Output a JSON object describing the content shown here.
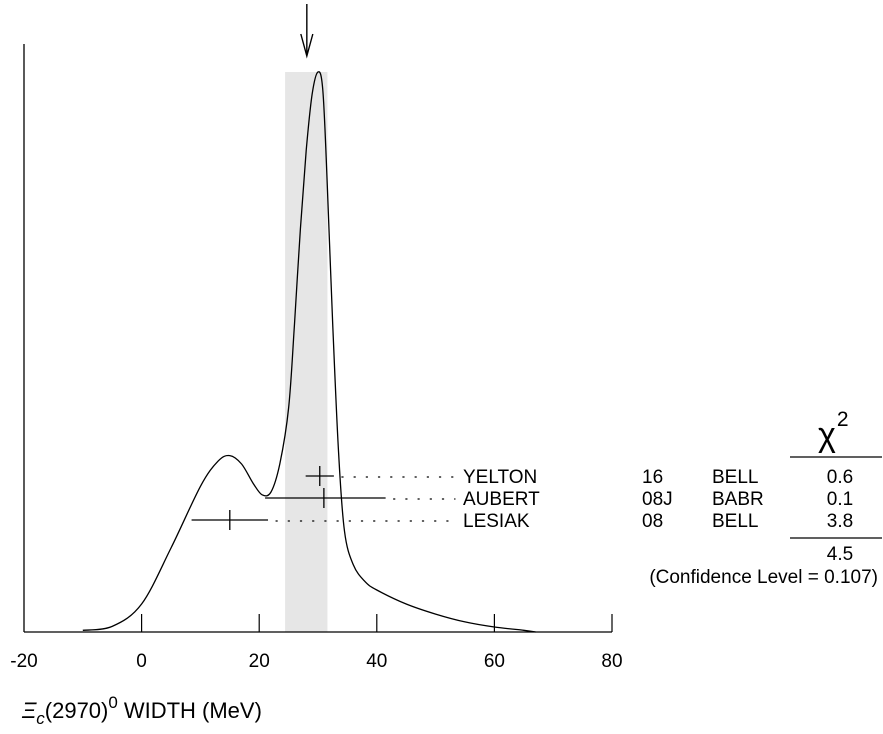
{
  "chart_data": {
    "type": "ideogram",
    "xlabel": {
      "symbol": "Ξ",
      "subscript": "c",
      "mass": "(2970)",
      "superscript": "0",
      "rest": "WIDTH (MeV)"
    },
    "xlim": [
      -20,
      80
    ],
    "x_ticks": [
      -20,
      0,
      20,
      40,
      60,
      80
    ],
    "x_tick_labels": [
      "-20",
      "0",
      "20",
      "40",
      "60",
      "80"
    ],
    "average": {
      "value": 28.1,
      "band": [
        24.4,
        31.6
      ],
      "marker": "down-arrow"
    },
    "measurements": [
      {
        "name": "YELTON",
        "year": "16",
        "experiment": "BELL",
        "value": 30.3,
        "err_low": 2.4,
        "err_high": 2.4,
        "chi2": "0.6"
      },
      {
        "name": "AUBERT",
        "year": "08J",
        "experiment": "BABR",
        "value": 31.0,
        "err_low": 10.0,
        "err_high": 10.5,
        "chi2": "0.1"
      },
      {
        "name": "LESIAK",
        "year": "08",
        "experiment": "BELL",
        "value": 15.0,
        "err_low": 6.5,
        "err_high": 6.5,
        "chi2": "3.8"
      }
    ],
    "chi2_header": {
      "symbol": "χ",
      "exponent": "2"
    },
    "chi2_total": "4.5",
    "confidence_level": "(Confidence Level = 0.107)",
    "ideogram_curve": [
      [
        -10,
        0.003
      ],
      [
        -5,
        0.01
      ],
      [
        0,
        0.05
      ],
      [
        5,
        0.15
      ],
      [
        10,
        0.26
      ],
      [
        13,
        0.305
      ],
      [
        15,
        0.315
      ],
      [
        17,
        0.3
      ],
      [
        19,
        0.265
      ],
      [
        20.5,
        0.245
      ],
      [
        22,
        0.25
      ],
      [
        23.5,
        0.3
      ],
      [
        25,
        0.4
      ],
      [
        26,
        0.55
      ],
      [
        27,
        0.72
      ],
      [
        28,
        0.86
      ],
      [
        29,
        0.96
      ],
      [
        30,
        1.0
      ],
      [
        30.8,
        0.97
      ],
      [
        31.5,
        0.82
      ],
      [
        32.5,
        0.55
      ],
      [
        33.5,
        0.32
      ],
      [
        34.5,
        0.18
      ],
      [
        36,
        0.12
      ],
      [
        38,
        0.09
      ],
      [
        40,
        0.075
      ],
      [
        45,
        0.05
      ],
      [
        50,
        0.032
      ],
      [
        55,
        0.018
      ],
      [
        60,
        0.009
      ],
      [
        65,
        0.003
      ],
      [
        67,
        0.0
      ]
    ]
  }
}
